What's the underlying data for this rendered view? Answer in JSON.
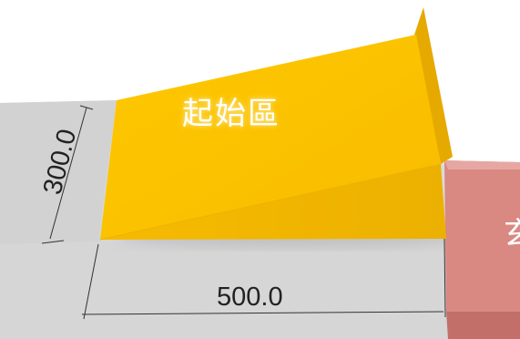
{
  "zones": {
    "start": {
      "label": "起始區",
      "color": "#FDC200"
    },
    "next": {
      "label_fragment": "玄",
      "color": "#D98882"
    }
  },
  "dimensions": {
    "height": "300.0",
    "width": "500.0"
  },
  "colors": {
    "platform": "#D3D3D3",
    "platform_edge": "#C4C4C4",
    "ramp_top": "#FDC200",
    "ramp_side": "#F2B600",
    "ramp_back": "#E6A900",
    "next_zone": "#D98882"
  }
}
